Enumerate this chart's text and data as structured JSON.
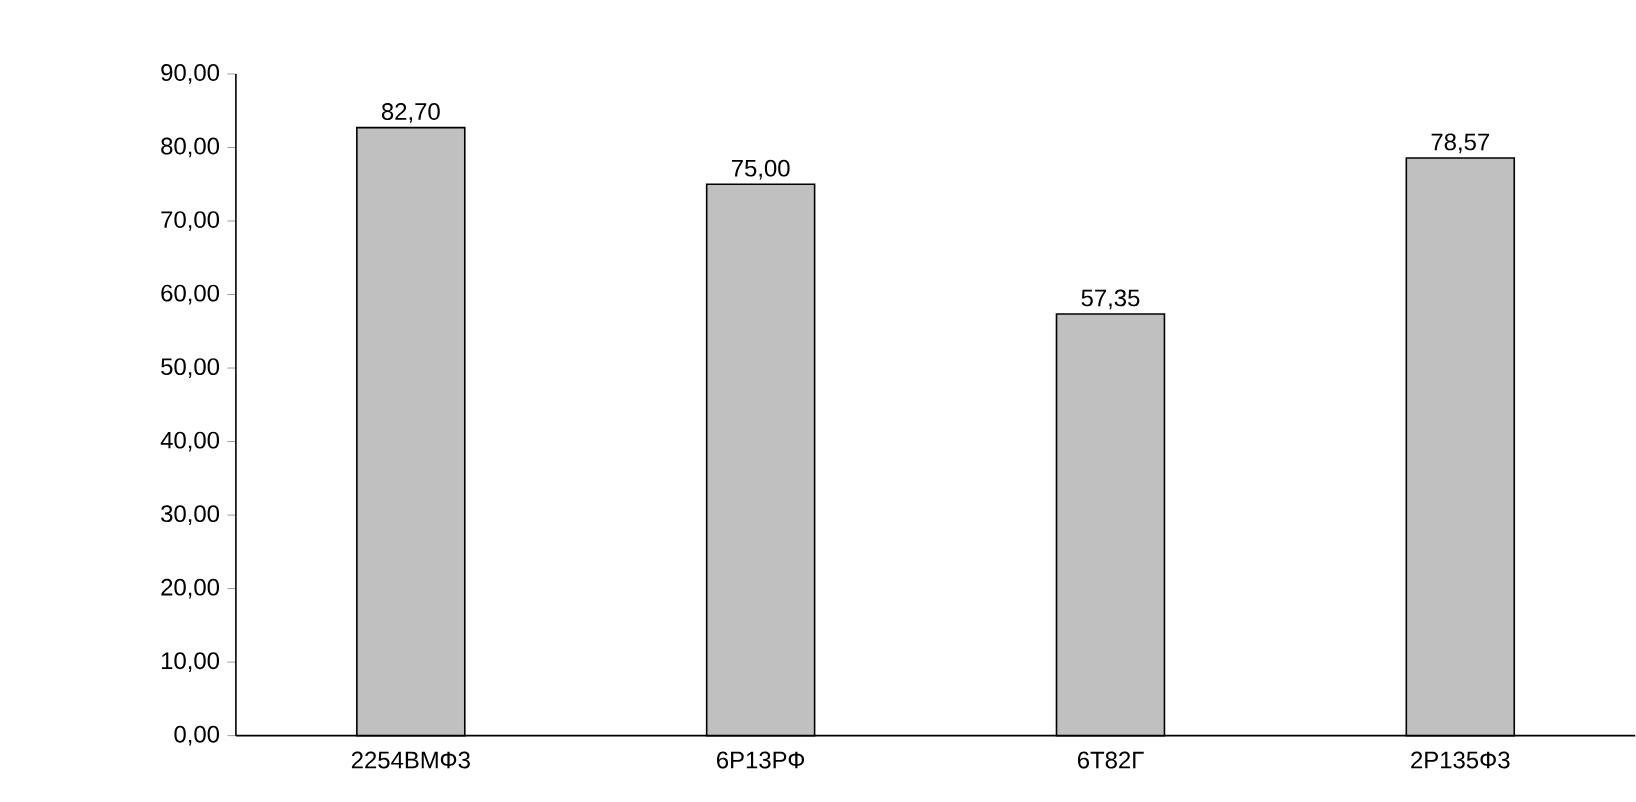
{
  "chart_data": {
    "type": "bar",
    "categories": [
      "2254ВМФ3",
      "6Р13РФ",
      "6Т82Г",
      "2Р135Ф3"
    ],
    "values": [
      82.7,
      75.0,
      57.35,
      78.57
    ],
    "value_labels": [
      "82,70",
      "75,00",
      "57,35",
      "78,57"
    ],
    "color": "#c0c0c0",
    "ylim": [
      0,
      90
    ],
    "yticks": [
      {
        "value": 0,
        "label": "0,00"
      },
      {
        "value": 10,
        "label": "10,00"
      },
      {
        "value": 20,
        "label": "20,00"
      },
      {
        "value": 30,
        "label": "30,00"
      },
      {
        "value": 40,
        "label": "40,00"
      },
      {
        "value": 50,
        "label": "50,00"
      },
      {
        "value": 60,
        "label": "60,00"
      },
      {
        "value": 70,
        "label": "70,00"
      },
      {
        "value": 80,
        "label": "80,00"
      },
      {
        "value": 90,
        "label": "90,00"
      }
    ],
    "grid": false
  }
}
